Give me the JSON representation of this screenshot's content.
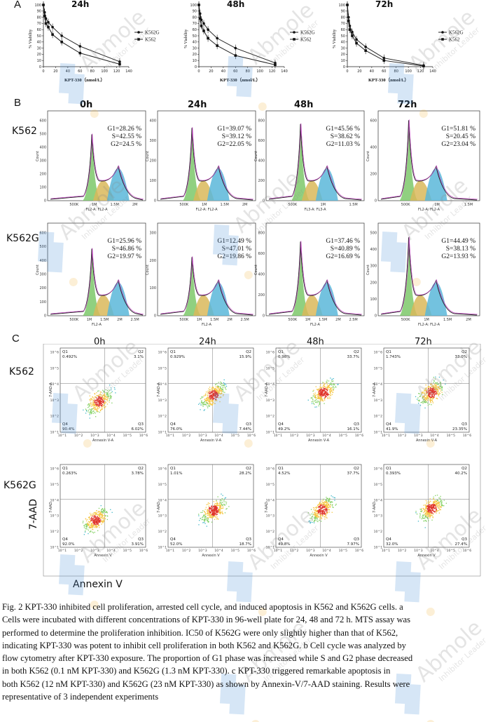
{
  "panelA": {
    "letter": "A",
    "charts": [
      {
        "title": "24h",
        "xlabel": "KPT-330（nmol/L）",
        "ylabel": "% Viability",
        "yticks": [
          "100",
          "90",
          "80",
          "70",
          "60",
          "50",
          "40",
          "30",
          "20",
          "10",
          "0"
        ],
        "xticks": [
          "0",
          "20",
          "40",
          "60",
          "80",
          "100",
          "120",
          "140"
        ],
        "legend": [
          "K562G",
          "K562"
        ]
      },
      {
        "title": "48h",
        "xlabel": "KPT-330（nmol/L）",
        "ylabel": "% Viability",
        "yticks": [
          "100",
          "90",
          "80",
          "70",
          "60",
          "50",
          "40",
          "30",
          "20",
          "10",
          "0"
        ],
        "xticks": [
          "0",
          "20",
          "40",
          "60",
          "80",
          "100",
          "120",
          "140"
        ],
        "legend": [
          "K562G",
          "K562"
        ]
      },
      {
        "title": "72h",
        "xlabel": "KPT-330（nmol/L）",
        "ylabel": "% Viability",
        "yticks": [
          "100",
          "90",
          "80",
          "70",
          "60",
          "50",
          "40",
          "30",
          "20",
          "10",
          "0"
        ],
        "xticks": [
          "0",
          "20",
          "40",
          "60",
          "80",
          "100",
          "120",
          "140"
        ],
        "legend": [
          "K562G",
          "K562"
        ]
      }
    ]
  },
  "chart_data": [
    {
      "type": "line",
      "title": "24h",
      "xlabel": "KPT-330（nmol/L）",
      "ylabel": "% Viability",
      "xlim": [
        0,
        140
      ],
      "ylim": [
        0,
        100
      ],
      "series": [
        {
          "name": "K562G",
          "x": [
            0,
            2,
            4,
            8,
            15,
            30,
            60,
            125
          ],
          "y": [
            100,
            88,
            78,
            72,
            64,
            50,
            33,
            8
          ]
        },
        {
          "name": "K562",
          "x": [
            0,
            2,
            4,
            8,
            15,
            30,
            60,
            125
          ],
          "y": [
            100,
            82,
            70,
            64,
            52,
            40,
            22,
            4
          ]
        }
      ]
    },
    {
      "type": "line",
      "title": "48h",
      "xlabel": "KPT-330（nmol/L）",
      "ylabel": "% Viability",
      "xlim": [
        0,
        140
      ],
      "ylim": [
        0,
        100
      ],
      "series": [
        {
          "name": "K562G",
          "x": [
            0,
            2,
            4,
            8,
            15,
            30,
            60,
            125
          ],
          "y": [
            100,
            86,
            76,
            70,
            60,
            46,
            30,
            6
          ]
        },
        {
          "name": "K562",
          "x": [
            0,
            2,
            4,
            8,
            15,
            30,
            60,
            125
          ],
          "y": [
            100,
            78,
            66,
            58,
            46,
            34,
            18,
            3
          ]
        }
      ]
    },
    {
      "type": "line",
      "title": "72h",
      "xlabel": "KPT-330（nmol/L）",
      "ylabel": "% Viability",
      "xlim": [
        0,
        140
      ],
      "ylim": [
        0,
        100
      ],
      "series": [
        {
          "name": "K562G",
          "x": [
            0,
            2,
            4,
            8,
            15,
            30,
            60,
            125
          ],
          "y": [
            100,
            80,
            66,
            56,
            44,
            32,
            14,
            2
          ]
        },
        {
          "name": "K562",
          "x": [
            0,
            2,
            4,
            8,
            15,
            30,
            60,
            125
          ],
          "y": [
            100,
            74,
            60,
            50,
            38,
            26,
            10,
            1
          ]
        }
      ]
    }
  ],
  "panelB": {
    "letter": "B",
    "times": [
      "0h",
      "24h",
      "48h",
      "72h"
    ],
    "rows": [
      {
        "label": "K562",
        "plots": [
          {
            "stats": [
              "G1=28.26 %",
              "S=42.55 %",
              "G2=24.5 %"
            ],
            "xlabel": "FL2-A: FL2-A",
            "xticks": [
              "500K",
              "1M",
              "1.5M",
              "2M"
            ],
            "yticks": [
              "0",
              "100",
              "200",
              "300",
              "400",
              "500",
              "600"
            ]
          },
          {
            "stats": [
              "G1=39.07 %",
              "S=39.12 %",
              "G2=22.05 %"
            ],
            "xlabel": "FL2-A: FL2-A",
            "xticks": [
              "500K",
              "1M",
              "1.5M",
              "2M"
            ],
            "yticks": [
              "0",
              "100",
              "200",
              "300",
              "400"
            ]
          },
          {
            "stats": [
              "G1=45.56 %",
              "S=38.62 %",
              "G2=11.03 %"
            ],
            "xlabel": "FL3-A: FL3-A",
            "xticks": [
              "500K",
              "1M",
              "1.5M"
            ],
            "yticks": [
              "0",
              "200",
              "400",
              "600",
              "800"
            ]
          },
          {
            "stats": [
              "G1=51.81 %",
              "S=20.45 %",
              "G2=23.04 %"
            ],
            "xlabel": "FL2-A: FL2-A",
            "xticks": [
              "500K",
              "1M",
              "1.5M"
            ],
            "yticks": [
              "0",
              "200",
              "400",
              "600"
            ]
          }
        ]
      },
      {
        "label": "K562G",
        "plots": [
          {
            "stats": [
              "G1=25.96 %",
              "S=46.86 %",
              "G2=19.97 %"
            ],
            "xlabel": "FL2-A",
            "xticks": [
              "500K",
              "1M",
              "1.5M",
              "2M",
              "2.5M"
            ],
            "yticks": [
              "0",
              "100",
              "200",
              "300",
              "400",
              "500",
              "600"
            ]
          },
          {
            "stats": [
              "G1=12.49 %",
              "S=47.01 %",
              "G2=19.86 %"
            ],
            "xlabel": "FL2-A",
            "xticks": [
              "500K",
              "1M",
              "1.5M",
              "2M",
              "2.5M"
            ],
            "yticks": [
              "0",
              "100",
              "200",
              "300"
            ]
          },
          {
            "stats": [
              "G1=37.46 %",
              "S=40.89 %",
              "G2=16.69 %"
            ],
            "xlabel": "FL2-A",
            "xticks": [
              "500K",
              "1M",
              "1.5M",
              "2M",
              "2.5M"
            ],
            "yticks": [
              "0",
              "200",
              "400",
              "600",
              "800"
            ]
          },
          {
            "stats": [
              "G1=44.49 %",
              "S=38.13 %",
              "G2=13.93 %"
            ],
            "xlabel": "FL2-A: FL2-A",
            "xticks": [
              "500K",
              "1M",
              "1.5M",
              "2M"
            ],
            "yticks": [
              "0",
              "100",
              "200",
              "300",
              "400",
              "500"
            ]
          }
        ]
      }
    ],
    "ylabel": "Count"
  },
  "panelC": {
    "letter": "C",
    "times": [
      "0h",
      "24h",
      "48h",
      "72h"
    ],
    "axis_x": "Annexin V",
    "axis_y": "7-AAD",
    "rows": [
      {
        "label": "K562",
        "xlabel": "Annexin V-A",
        "ylabel": "7-AAD-A",
        "plots": [
          {
            "q1": "Q1",
            "q1v": "0.492%",
            "q2": "Q2",
            "q2v": "3.1%",
            "q3": "Q3",
            "q3v": "6.02%",
            "q4": "Q4",
            "q4v": "90.4%"
          },
          {
            "q1": "Q1",
            "q1v": "0.929%",
            "q2": "Q2",
            "q2v": "15.9%",
            "q3": "Q3",
            "q3v": "7.44%",
            "q4": "Q4",
            "q4v": "76.0%"
          },
          {
            "q1": "Q1",
            "q1v": "0.98%",
            "q2": "Q2",
            "q2v": "33.7%",
            "q3": "Q3",
            "q3v": "16.1%",
            "q4": "Q4",
            "q4v": "49.2%"
          },
          {
            "q1": "Q1",
            "q1v": "1.743%",
            "q2": "Q2",
            "q2v": "33.0%",
            "q3": "Q3",
            "q3v": "23.35%",
            "q4": "Q4",
            "q4v": "41.9%"
          }
        ]
      },
      {
        "label": "K562G",
        "xlabel": "Annexin V",
        "ylabel": "7-AAD",
        "plots": [
          {
            "q1": "Q1",
            "q1v": "0.263%",
            "q2": "Q2",
            "q2v": "3.78%",
            "q3": "Q3",
            "q3v": "3.91%",
            "q4": "Q4",
            "q4v": "92.0%"
          },
          {
            "q1": "Q1",
            "q1v": "1.01%",
            "q2": "Q2",
            "q2v": "28.2%",
            "q3": "Q3",
            "q3v": "18.7%",
            "q4": "Q4",
            "q4v": "52.0%"
          },
          {
            "q1": "Q1",
            "q1v": "4.52%",
            "q2": "Q2",
            "q2v": "37.7%",
            "q3": "Q3",
            "q3v": "7.97%",
            "q4": "Q4",
            "q4v": "49.8%"
          },
          {
            "q1": "Q1",
            "q1v": "0.393%",
            "q2": "Q2",
            "q2v": "40.2%",
            "q3": "Q3",
            "q3v": "27.4%",
            "q4": "Q4",
            "q4v": "32.0%"
          }
        ]
      }
    ],
    "ticks": [
      "10^1",
      "10^2",
      "10^3",
      "10^4",
      "10^5",
      "10^6"
    ]
  },
  "caption": {
    "lines": [
      "Fig. 2 KPT-330 inhibited cell proliferation, arrested cell cycle, and induced apoptosis in K562 and K562G cells. a",
      "Cells were incubated with different concentrations of KPT-330 in 96-well plate for 24, 48 and 72 h. MTS assay was",
      "performed to determine the proliferation inhibition. IC50 of K562G were only slightly higher than that of K562,",
      "indicating KPT-330 was potent to inhibit cell proliferation in both K562 and K562G. b Cell cycle was analyzed by",
      "flow cytometry after KPT-330 exposure. The proportion of G1 phase was increased while S and G2 phase decreased",
      "in both K562 (0.1 nM KPT-330) and K562G (1.3 nM KPT-330). c KPT-330 triggered remarkable apoptosis in",
      "both K562 (12 nM KPT-330) and K562G (23 nM KPT-330) as shown by Annexin-V/7-AAD staining. Results were",
      "representative of 3 independent experiments"
    ]
  },
  "watermark": {
    "brand": "Abmole",
    "tagline": "Inhibitor Leader"
  },
  "colors": {
    "g1": "#7dc86a",
    "s": "#d9b85a",
    "g2": "#5ab7d9",
    "fit": "#c040c0",
    "line": "#222222",
    "watermark": "#4a90d9"
  }
}
